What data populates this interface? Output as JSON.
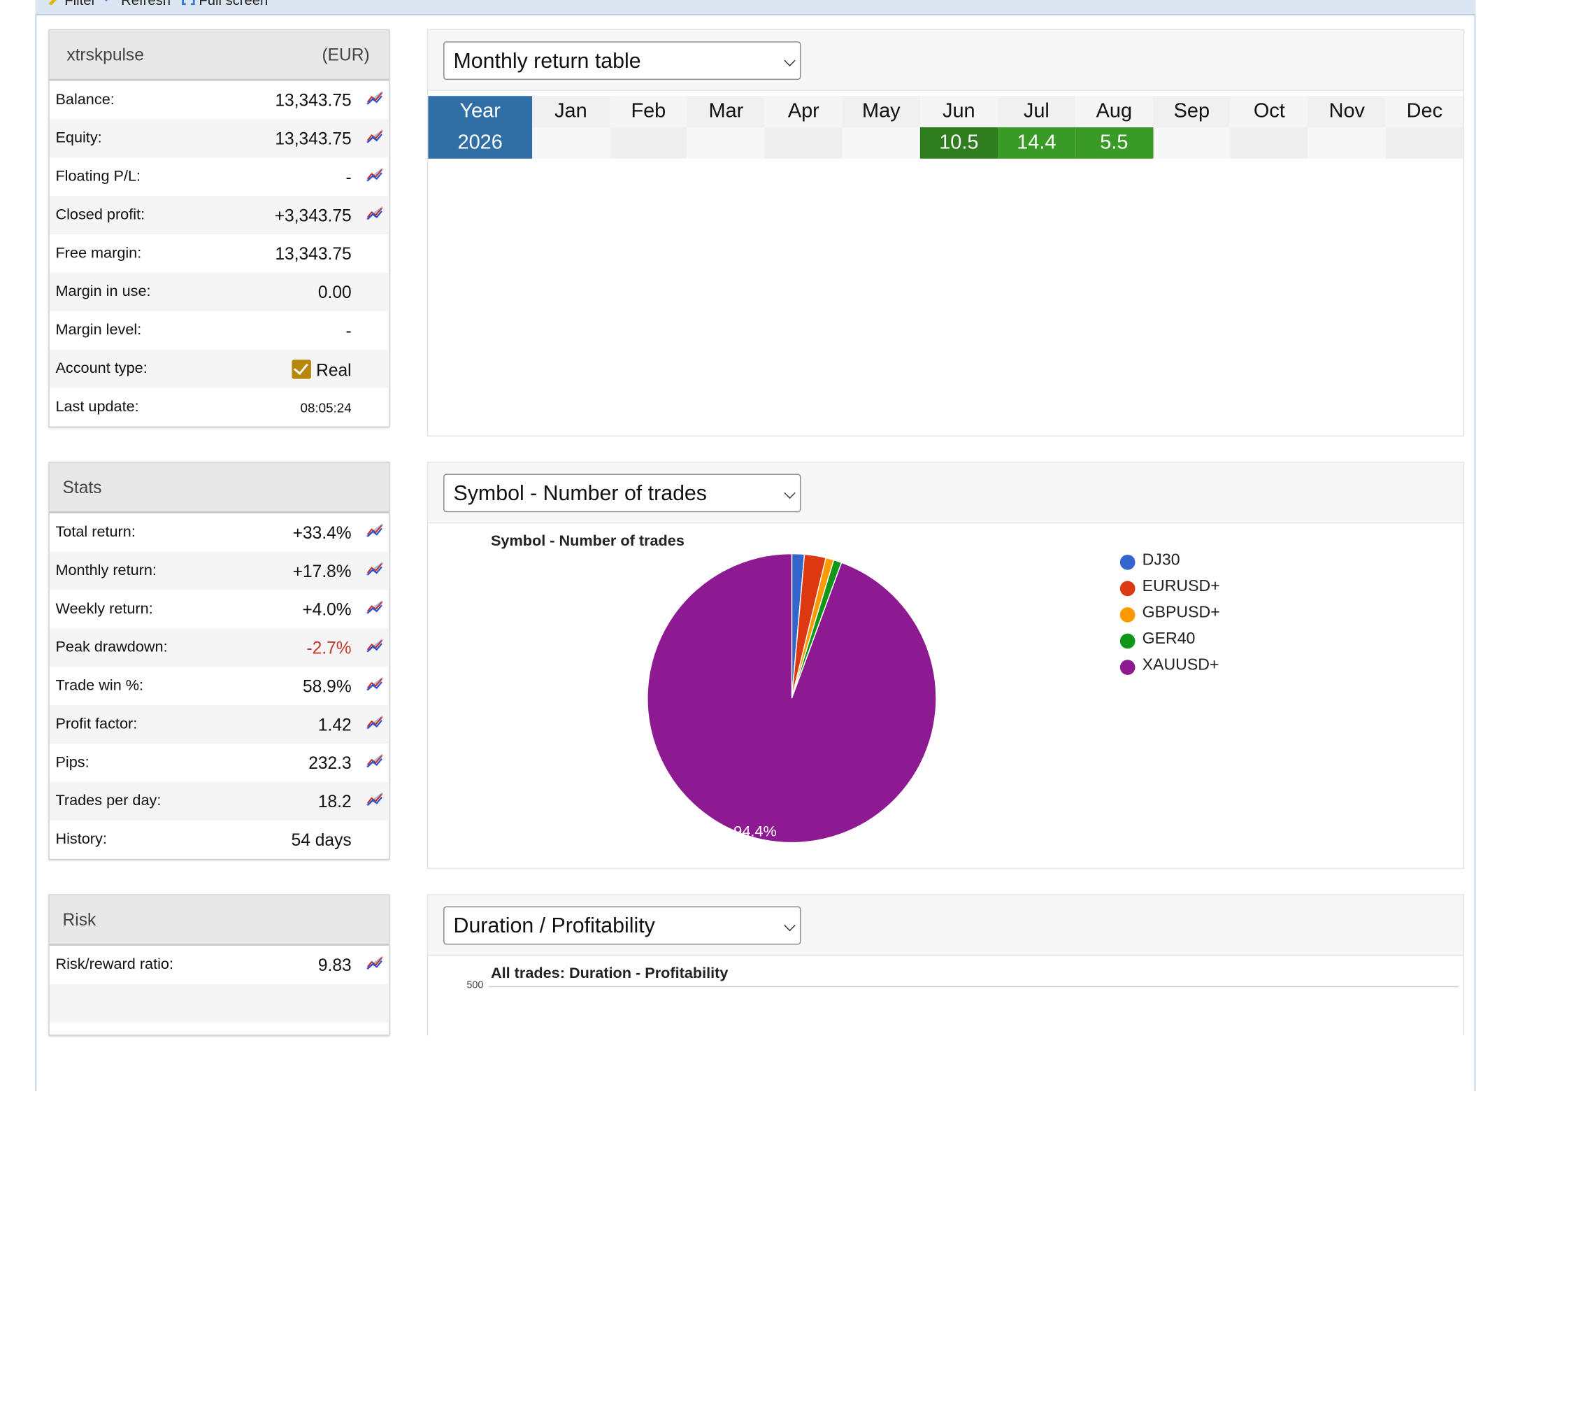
{
  "toolbar": {
    "filter_label": "Filter",
    "refresh_label": "Refresh",
    "fullscreen_label": "Full screen"
  },
  "account": {
    "name": "xtrskpulse",
    "currency": "(EUR)",
    "rows": [
      {
        "label": "Balance:",
        "value": "13,343.75"
      },
      {
        "label": "Equity:",
        "value": "13,343.75"
      },
      {
        "label": "Floating P/L:",
        "value": "-"
      },
      {
        "label": "Closed profit:",
        "value": "+3,343.75"
      },
      {
        "label": "Free margin:",
        "value": "13,343.75"
      },
      {
        "label": "Margin in use:",
        "value": "0.00"
      },
      {
        "label": "Margin level:",
        "value": "-"
      },
      {
        "label": "Account type:",
        "value": "Real"
      },
      {
        "label": "Last update:",
        "value": "08:05:24"
      }
    ]
  },
  "stats": {
    "title": "Stats",
    "rows": [
      {
        "label": "Total return:",
        "value": "+33.4%"
      },
      {
        "label": "Monthly return:",
        "value": "+17.8%"
      },
      {
        "label": "Weekly return:",
        "value": "+4.0%"
      },
      {
        "label": "Peak drawdown:",
        "value": "-2.7%"
      },
      {
        "label": "Trade win %:",
        "value": "58.9%"
      },
      {
        "label": "Profit factor:",
        "value": "1.42"
      },
      {
        "label": "Pips:",
        "value": "232.3"
      },
      {
        "label": "Trades per day:",
        "value": "18.2"
      },
      {
        "label": "History:",
        "value": "54 days"
      }
    ]
  },
  "risk": {
    "title": "Risk",
    "rows": [
      {
        "label": "Risk/reward ratio:",
        "value": "9.83"
      }
    ]
  },
  "monthly": {
    "select": "Monthly return table",
    "headers": [
      "Year",
      "Jan",
      "Feb",
      "Mar",
      "Apr",
      "May",
      "Jun",
      "Jul",
      "Aug",
      "Sep",
      "Oct",
      "Nov",
      "Dec"
    ],
    "row": [
      "2026",
      "",
      "",
      "",
      "",
      "",
      "10.5",
      "14.4",
      "5.5",
      "",
      "",
      "",
      ""
    ]
  },
  "symbol": {
    "select": "Symbol - Number of trades",
    "chart_data": {
      "type": "pie",
      "title": "Symbol - Number of trades",
      "categories": [
        "DJ30",
        "EURUSD+",
        "GBPUSD+",
        "GER40",
        "XAUUSD+"
      ],
      "values": [
        1.4,
        2.4,
        0.9,
        0.9,
        94.4
      ],
      "labels": [
        "",
        "",
        "",
        "",
        "94.4%"
      ],
      "colors": [
        "#3366cc",
        "#dc3912",
        "#ff9900",
        "#109618",
        "#8e1a91"
      ],
      "legend": "right"
    }
  },
  "duration": {
    "select": "Duration / Profitability",
    "chart_title": "All trades: Duration - Profitability",
    "y_tick": "500"
  }
}
